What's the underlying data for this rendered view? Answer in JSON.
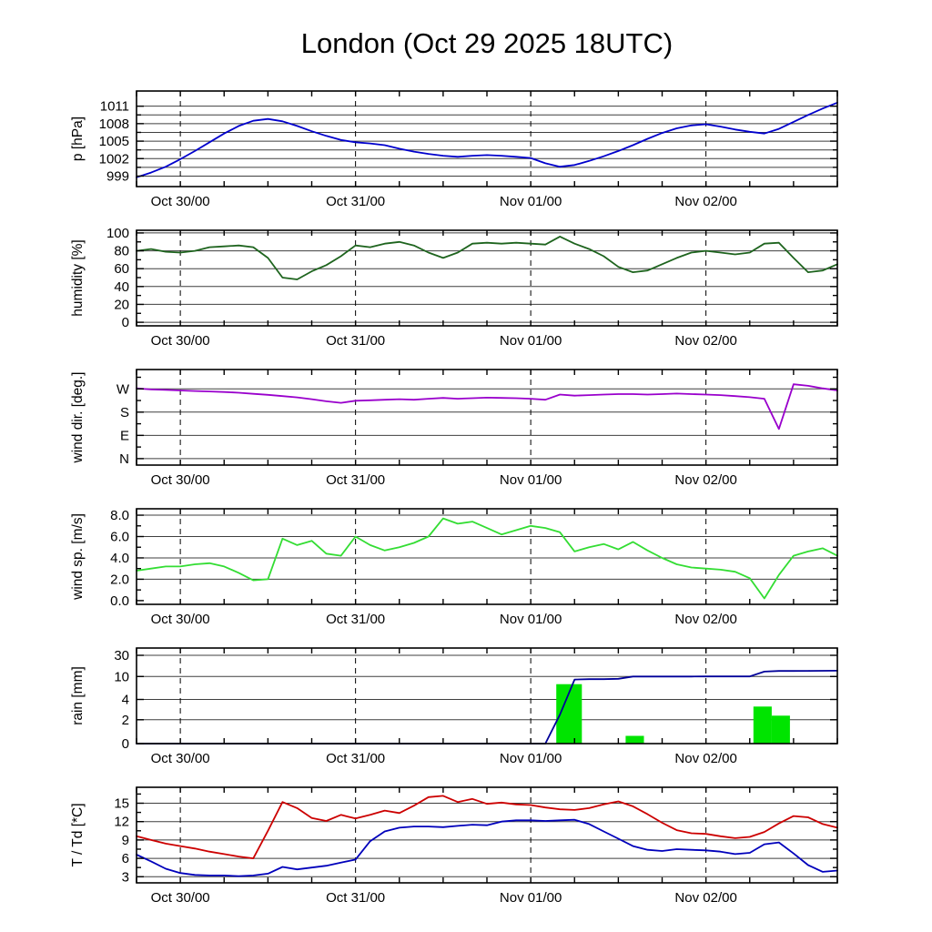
{
  "title": "London (Oct 29 2025 18UTC)",
  "chart_data": {
    "type": "line",
    "kind": "meteogram-multi-panel",
    "x_unit": "hours since Oct 29 2025 18UTC",
    "x_hours": [
      0,
      2,
      4,
      6,
      8,
      10,
      12,
      14,
      16,
      18,
      20,
      22,
      24,
      26,
      28,
      30,
      32,
      34,
      36,
      38,
      40,
      42,
      44,
      46,
      48,
      50,
      52,
      54,
      56,
      58,
      60,
      62,
      64,
      66,
      68,
      70,
      72,
      74,
      76,
      78,
      80,
      82,
      84,
      86,
      88,
      90,
      92,
      94,
      96
    ],
    "x_axis": {
      "t_min": 0,
      "t_max": 96,
      "minor_tick_step_hours": 6,
      "day_ticks": [
        {
          "t": 6,
          "label": "Oct 30/00"
        },
        {
          "t": 30,
          "label": "Oct 31/00"
        },
        {
          "t": 54,
          "label": "Nov 01/00"
        },
        {
          "t": 78,
          "label": "Nov 02/00"
        }
      ]
    },
    "panels": [
      {
        "id": "pressure",
        "ylabel": "p [hPa]",
        "ymin": 997.2,
        "ymax": 1013.6,
        "gridlines": [
          999,
          1000.5,
          1002,
          1003.5,
          1005,
          1006.5,
          1008,
          1009.5,
          1011
        ],
        "yticks": [
          {
            "v": 999,
            "label": "999"
          },
          {
            "v": 1002,
            "label": "1002"
          },
          {
            "v": 1005,
            "label": "1005"
          },
          {
            "v": 1008,
            "label": "1008"
          },
          {
            "v": 1011,
            "label": "1011"
          }
        ],
        "yticks_minor": [
          1000.5,
          1003.5,
          1006.5,
          1009.5
        ],
        "series": [
          {
            "name": "pressure",
            "color": "#0000cc",
            "values": [
              998.8,
              999.6,
              1000.6,
              1001.9,
              1003.3,
              1004.8,
              1006.3,
              1007.6,
              1008.5,
              1008.8,
              1008.4,
              1007.6,
              1006.7,
              1005.9,
              1005.2,
              1004.8,
              1004.6,
              1004.3,
              1003.7,
              1003.2,
              1002.8,
              1002.5,
              1002.3,
              1002.5,
              1002.6,
              1002.5,
              1002.3,
              1002.1,
              1001.2,
              1000.6,
              1000.9,
              1001.6,
              1002.4,
              1003.3,
              1004.3,
              1005.4,
              1006.4,
              1007.2,
              1007.7,
              1007.9,
              1007.5,
              1007.0,
              1006.6,
              1006.3,
              1007.1,
              1008.3,
              1009.5,
              1010.6,
              1011.6
            ]
          }
        ]
      },
      {
        "id": "humidity",
        "ylabel": "humidity [%]",
        "ymin": -4,
        "ymax": 103,
        "gridlines": [
          0,
          20,
          40,
          60,
          80,
          100
        ],
        "yticks": [
          {
            "v": 0,
            "label": "0"
          },
          {
            "v": 20,
            "label": "20"
          },
          {
            "v": 40,
            "label": "40"
          },
          {
            "v": 60,
            "label": "60"
          },
          {
            "v": 80,
            "label": "80"
          },
          {
            "v": 100,
            "label": "100"
          }
        ],
        "yticks_minor": [
          10,
          30,
          50,
          70,
          90
        ],
        "series": [
          {
            "name": "relative humidity",
            "color": "#1e641e",
            "values": [
              80,
              82,
              79,
              78,
              80,
              84,
              85,
              86,
              84,
              72,
              50,
              48,
              57,
              64,
              74,
              86,
              84,
              88,
              90,
              86,
              78,
              72,
              78,
              88,
              89,
              88,
              89,
              88,
              87,
              96,
              88,
              82,
              74,
              62,
              56,
              58,
              65,
              72,
              78,
              80,
              78,
              76,
              78,
              88,
              89,
              72,
              56,
              58,
              65
            ]
          }
        ]
      },
      {
        "id": "wind-direction",
        "ylabel": "wind dir. [deg.]",
        "ymin": -25,
        "ymax": 345,
        "gridlines": [
          0,
          90,
          180,
          270
        ],
        "yticks": [
          {
            "v": 0,
            "label": "N"
          },
          {
            "v": 90,
            "label": "E"
          },
          {
            "v": 180,
            "label": "S"
          },
          {
            "v": 270,
            "label": "W"
          }
        ],
        "yticks_minor": [
          45,
          135,
          225,
          315
        ],
        "series": [
          {
            "name": "wind direction",
            "color": "#9900cc",
            "values": [
              272,
              268,
              266,
              264,
              262,
              260,
              258,
              255,
              251,
              247,
              242,
              237,
              230,
              222,
              216,
              224,
              226,
              228,
              230,
              228,
              232,
              235,
              232,
              234,
              236,
              235,
              234,
              232,
              228,
              248,
              244,
              246,
              248,
              250,
              250,
              248,
              250,
              252,
              250,
              248,
              246,
              242,
              238,
              232,
              115,
              288,
              282,
              272,
              264
            ]
          }
        ]
      },
      {
        "id": "wind-speed",
        "ylabel": "wind sp. [m/s]",
        "ymin": -0.35,
        "ymax": 8.6,
        "gridlines": [
          2,
          4,
          6,
          8
        ],
        "yticks": [
          {
            "v": 0,
            "label": "0.0"
          },
          {
            "v": 2,
            "label": "2.0"
          },
          {
            "v": 4,
            "label": "4.0"
          },
          {
            "v": 6,
            "label": "6.0"
          },
          {
            "v": 8,
            "label": "8.0"
          }
        ],
        "yticks_minor": [
          1,
          3,
          5,
          7
        ],
        "series": [
          {
            "name": "wind speed",
            "color": "#33dd33",
            "values": [
              2.8,
              3.0,
              3.2,
              3.2,
              3.4,
              3.5,
              3.2,
              2.6,
              1.9,
              2.0,
              5.8,
              5.2,
              5.6,
              4.4,
              4.2,
              6.0,
              5.2,
              4.7,
              5.0,
              5.4,
              6.0,
              7.7,
              7.2,
              7.4,
              6.8,
              6.2,
              6.6,
              7.0,
              6.8,
              6.4,
              4.6,
              5.0,
              5.3,
              4.8,
              5.5,
              4.7,
              4.0,
              3.4,
              3.1,
              3.0,
              2.9,
              2.7,
              2.1,
              0.2,
              2.4,
              4.2,
              4.6,
              4.9,
              4.2
            ]
          }
        ]
      },
      {
        "id": "rain",
        "ylabel": "rain [mm]",
        "ymin": 0,
        "ymax": 30,
        "scale_anchors": {
          "values": [
            0,
            2,
            4,
            10,
            30
          ],
          "fractions": [
            0,
            0.27,
            0.5,
            0.76,
            1
          ]
        },
        "gridlines": [
          2,
          4,
          10,
          30
        ],
        "yticks": [
          {
            "v": 0,
            "label": "0"
          },
          {
            "v": 2,
            "label": "2"
          },
          {
            "v": 4,
            "label": "4"
          },
          {
            "v": 10,
            "label": "10"
          },
          {
            "v": 30,
            "label": "30"
          }
        ],
        "yticks_minor": [],
        "bars": {
          "color": "#00e400",
          "data": [
            {
              "t0": 57.5,
              "t1": 61,
              "v": 8.0
            },
            {
              "t0": 67,
              "t1": 69.5,
              "v": 0.65
            },
            {
              "t0": 84.5,
              "t1": 87,
              "v": 3.3
            },
            {
              "t0": 87,
              "t1": 89.5,
              "v": 2.4
            }
          ]
        },
        "series": [
          {
            "name": "accumulated rain",
            "color": "#000099",
            "values": [
              0,
              0,
              0,
              0,
              0,
              0,
              0,
              0,
              0,
              0,
              0,
              0,
              0,
              0,
              0,
              0,
              0,
              0,
              0,
              0,
              0,
              0,
              0,
              0,
              0,
              0,
              0,
              0,
              0,
              2.5,
              9.2,
              9.3,
              9.3,
              9.4,
              10.0,
              10.0,
              10.0,
              10.0,
              10.0,
              10.1,
              10.1,
              10.1,
              10.1,
              14.6,
              15.2,
              15.2,
              15.3,
              15.4,
              15.5
            ]
          }
        ]
      },
      {
        "id": "temperature",
        "ylabel": "T / Td [*C]",
        "ymin": 2,
        "ymax": 17.6,
        "gridlines": [
          3,
          6,
          9,
          12,
          15
        ],
        "yticks": [
          {
            "v": 3,
            "label": "3"
          },
          {
            "v": 6,
            "label": "6"
          },
          {
            "v": 9,
            "label": "9"
          },
          {
            "v": 12,
            "label": "12"
          },
          {
            "v": 15,
            "label": "15"
          }
        ],
        "yticks_minor": [
          4.5,
          7.5,
          10.5,
          13.5,
          16.5
        ],
        "series": [
          {
            "name": "temperature T",
            "color": "#cc0000",
            "values": [
              9.6,
              9.0,
              8.4,
              8.0,
              7.6,
              7.1,
              6.7,
              6.3,
              6.0,
              10.5,
              15.2,
              14.2,
              12.6,
              12.1,
              13.1,
              12.5,
              13.1,
              13.8,
              13.4,
              14.6,
              16.0,
              16.2,
              15.2,
              15.7,
              14.9,
              15.1,
              14.8,
              14.7,
              14.3,
              14.0,
              13.9,
              14.2,
              14.8,
              15.3,
              14.5,
              13.2,
              11.8,
              10.6,
              10.1,
              10.0,
              9.6,
              9.3,
              9.5,
              10.3,
              11.7,
              12.9,
              12.7,
              11.6,
              11.0
            ]
          },
          {
            "name": "dew point Td",
            "color": "#0000bb",
            "values": [
              6.6,
              5.5,
              4.3,
              3.6,
              3.3,
              3.2,
              3.2,
              3.1,
              3.2,
              3.5,
              4.6,
              4.2,
              4.5,
              4.8,
              5.3,
              5.8,
              8.8,
              10.4,
              11.0,
              11.2,
              11.2,
              11.1,
              11.3,
              11.5,
              11.4,
              12.0,
              12.2,
              12.2,
              12.1,
              12.2,
              12.3,
              11.6,
              10.4,
              9.2,
              8.0,
              7.4,
              7.2,
              7.5,
              7.4,
              7.3,
              7.1,
              6.7,
              6.9,
              8.3,
              8.6,
              6.8,
              4.9,
              3.8,
              4.0
            ]
          }
        ]
      }
    ]
  }
}
